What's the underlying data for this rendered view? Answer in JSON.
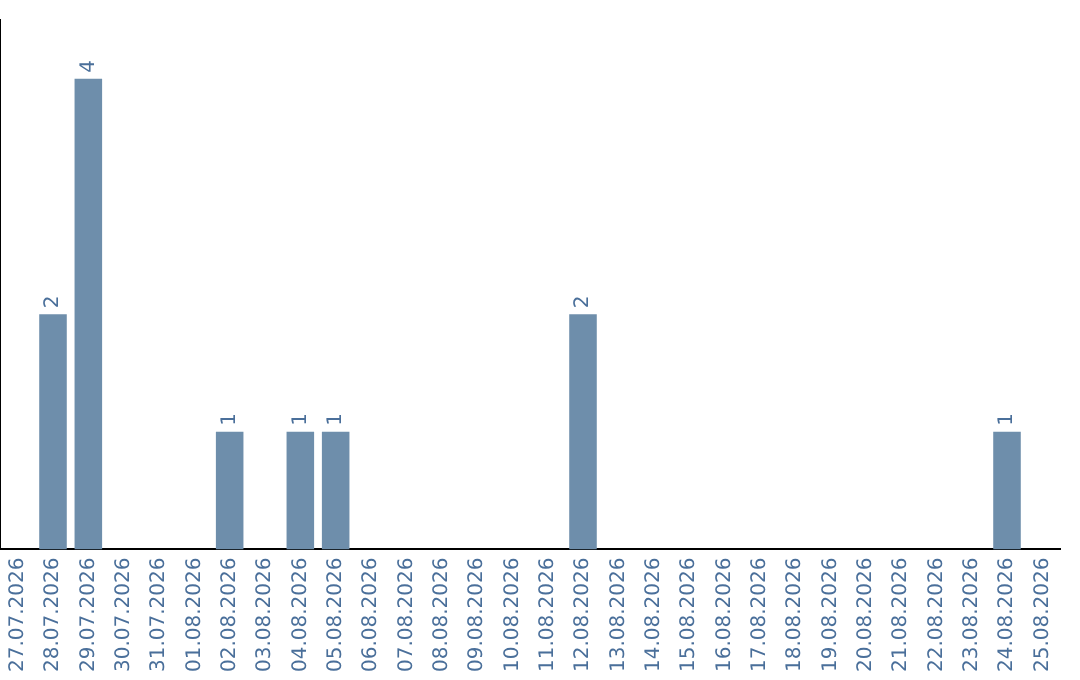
{
  "chart_data": {
    "type": "bar",
    "categories": [
      "27.07.2026",
      "28.07.2026",
      "29.07.2026",
      "30.07.2026",
      "31.07.2026",
      "01.08.2026",
      "02.08.2026",
      "03.08.2026",
      "04.08.2026",
      "05.08.2026",
      "06.08.2026",
      "07.08.2026",
      "08.08.2026",
      "09.08.2026",
      "10.08.2026",
      "11.08.2026",
      "12.08.2026",
      "13.08.2026",
      "14.08.2026",
      "15.08.2026",
      "16.08.2026",
      "17.08.2026",
      "18.08.2026",
      "19.08.2026",
      "20.08.2026",
      "21.08.2026",
      "22.08.2026",
      "23.08.2026",
      "24.08.2026",
      "25.08.2026"
    ],
    "values": [
      0,
      2,
      4,
      0,
      0,
      0,
      1,
      0,
      1,
      1,
      0,
      0,
      0,
      0,
      0,
      0,
      2,
      0,
      0,
      0,
      0,
      0,
      0,
      0,
      0,
      0,
      0,
      0,
      1,
      0
    ],
    "value_labels": [
      null,
      "2",
      "4",
      null,
      null,
      null,
      "1",
      null,
      "1",
      "1",
      null,
      null,
      null,
      null,
      null,
      null,
      "2",
      null,
      null,
      null,
      null,
      null,
      null,
      null,
      null,
      null,
      null,
      null,
      "1",
      null
    ],
    "color": "#6e8eab",
    "grid": false,
    "legend": false,
    "tick_labels": "x"
  }
}
